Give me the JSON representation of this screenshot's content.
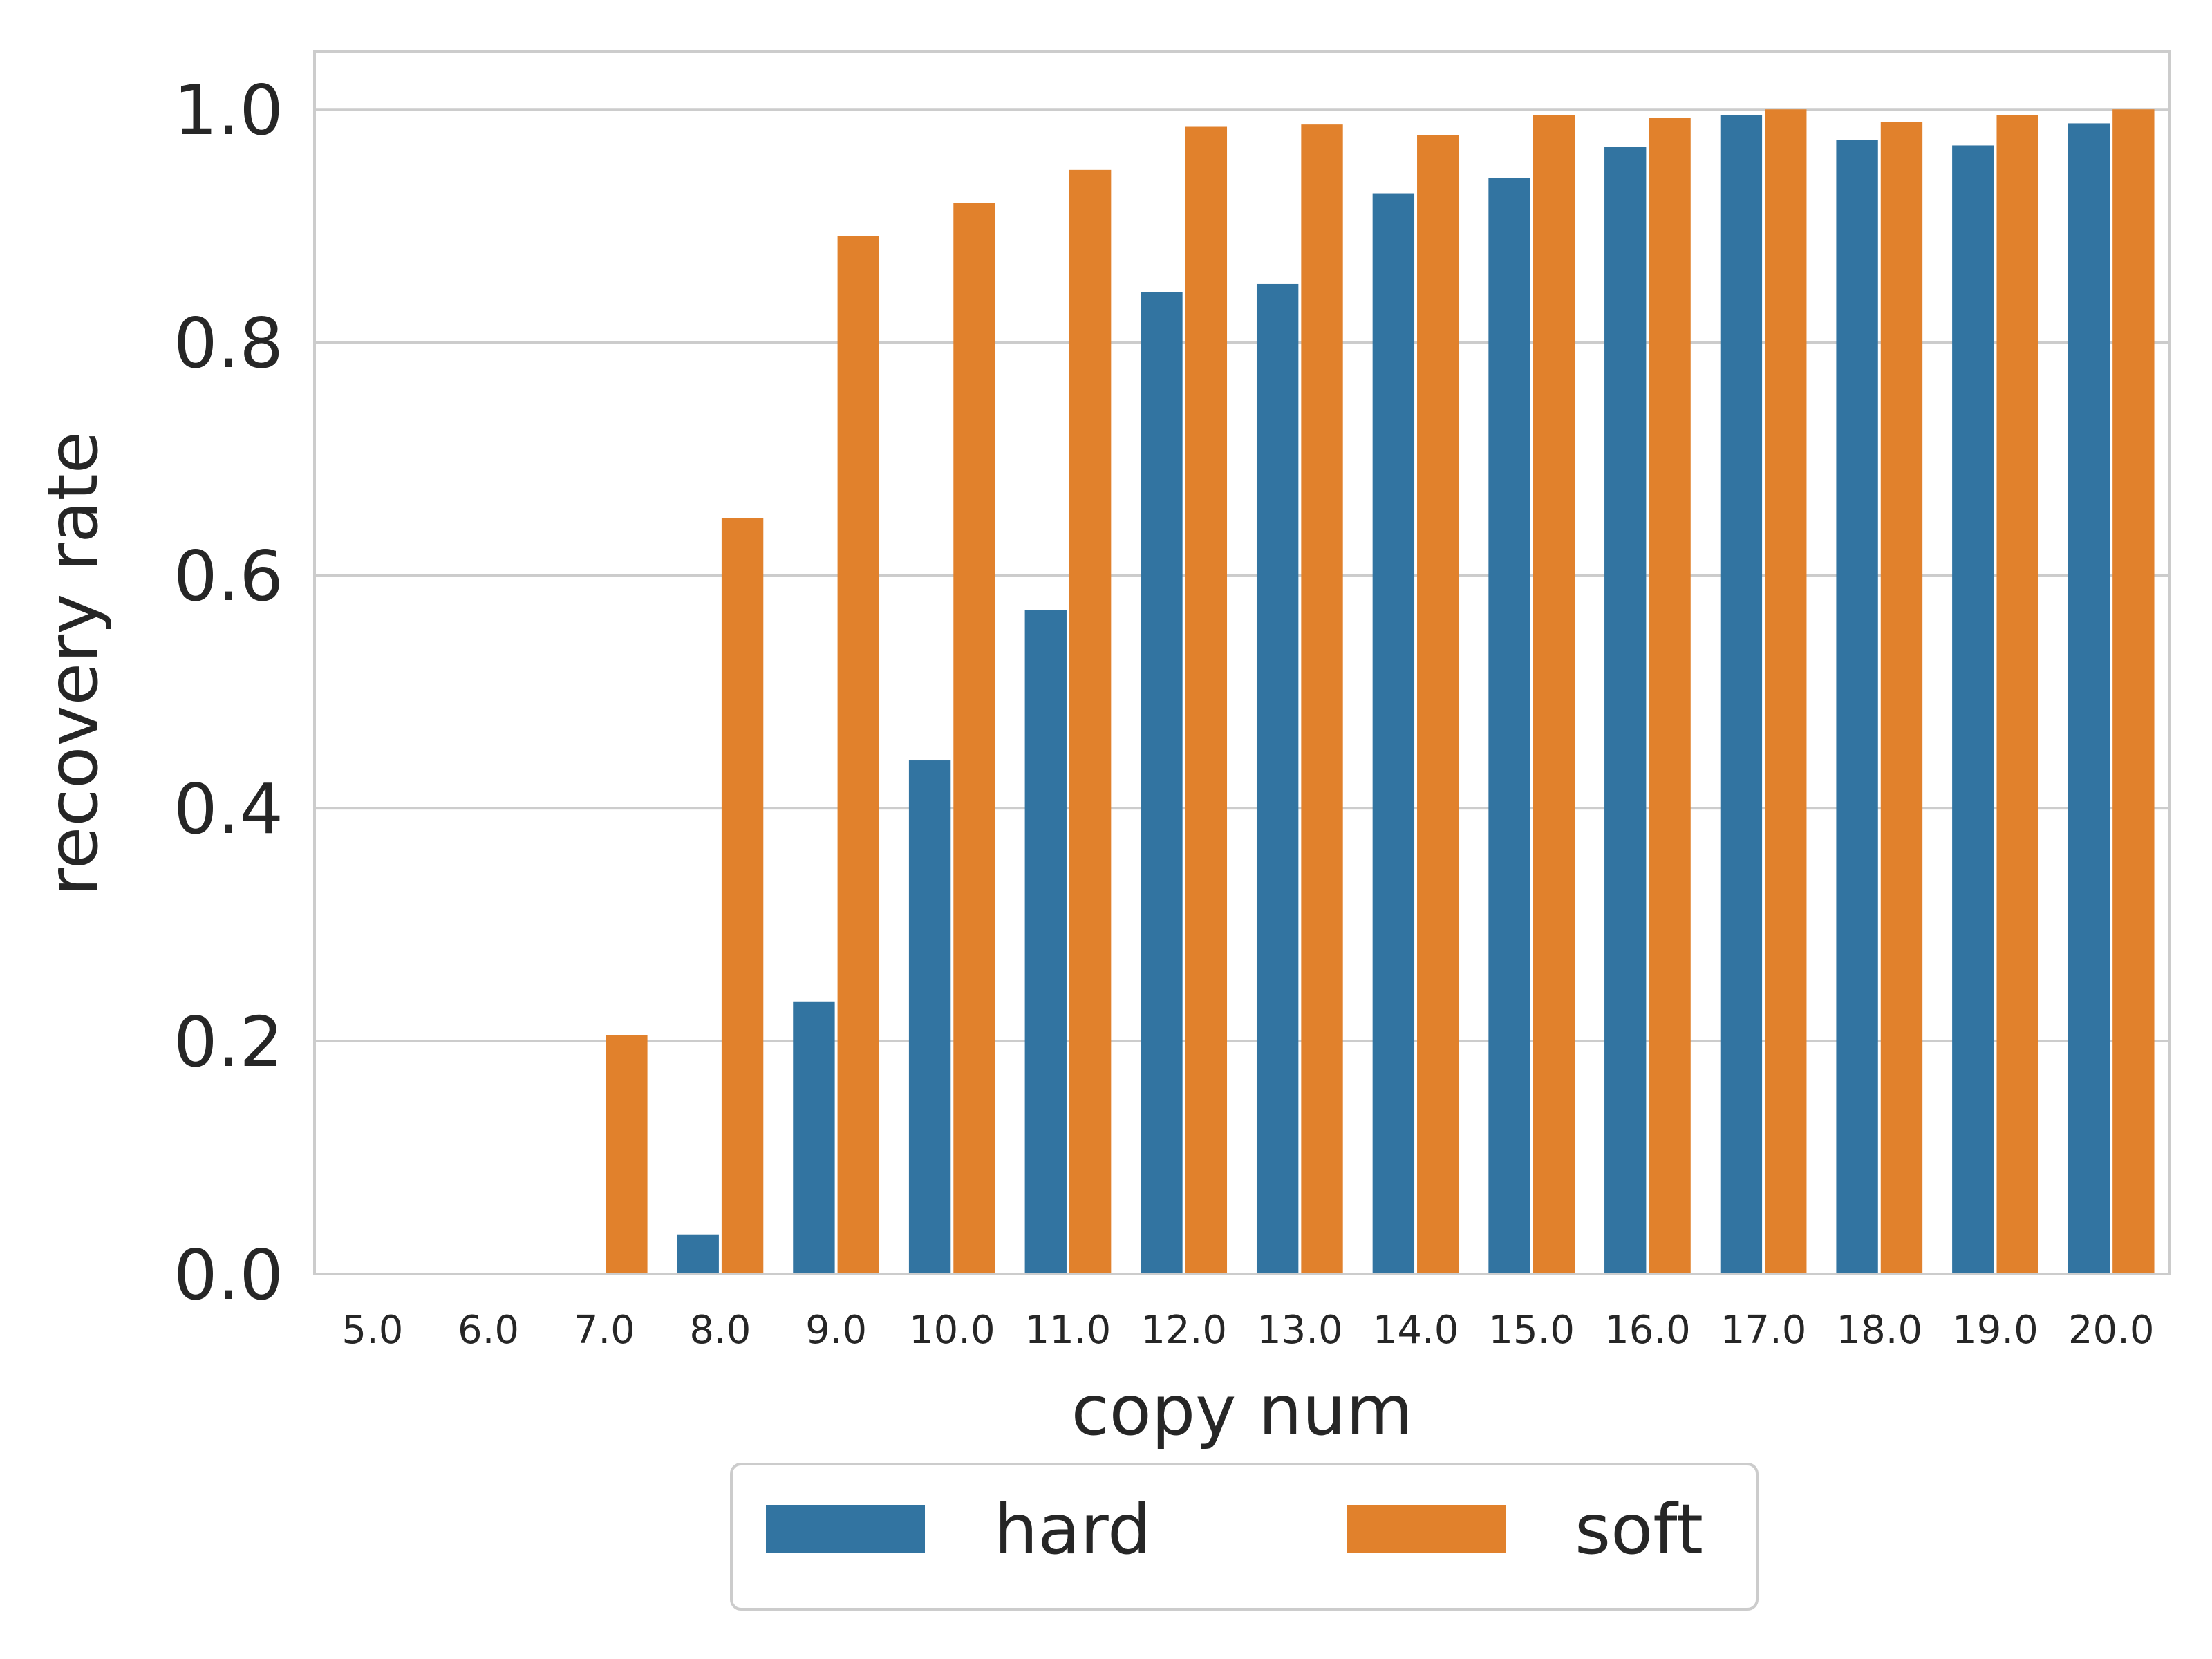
{
  "chart_data": {
    "type": "bar",
    "title": "",
    "xlabel": "copy num",
    "ylabel": "recovery rate",
    "categories": [
      "5.0",
      "6.0",
      "7.0",
      "8.0",
      "9.0",
      "10.0",
      "11.0",
      "12.0",
      "13.0",
      "14.0",
      "15.0",
      "16.0",
      "17.0",
      "18.0",
      "19.0",
      "20.0"
    ],
    "series": [
      {
        "name": "hard",
        "color": "#3274a1",
        "values": [
          0.0,
          0.0,
          0.0,
          0.034,
          0.234,
          0.441,
          0.57,
          0.843,
          0.85,
          0.928,
          0.941,
          0.968,
          0.995,
          0.974,
          0.969,
          0.988
        ]
      },
      {
        "name": "soft",
        "color": "#e1812c",
        "values": [
          0.0,
          0.0,
          0.205,
          0.649,
          0.891,
          0.92,
          0.948,
          0.985,
          0.987,
          0.978,
          0.995,
          0.993,
          1.0,
          0.989,
          0.995,
          1.0
        ]
      }
    ],
    "ylim": [
      0,
      1.05
    ],
    "yticks": [
      "0.0",
      "0.2",
      "0.4",
      "0.6",
      "0.8",
      "1.0"
    ],
    "ytick_values": [
      0.0,
      0.2,
      0.4,
      0.6,
      0.8,
      1.0
    ],
    "grid": true,
    "grid_color": "#cccccc",
    "spine_color": "#cccccc",
    "legend_position": "bottom-center",
    "legend_columns": 2
  }
}
